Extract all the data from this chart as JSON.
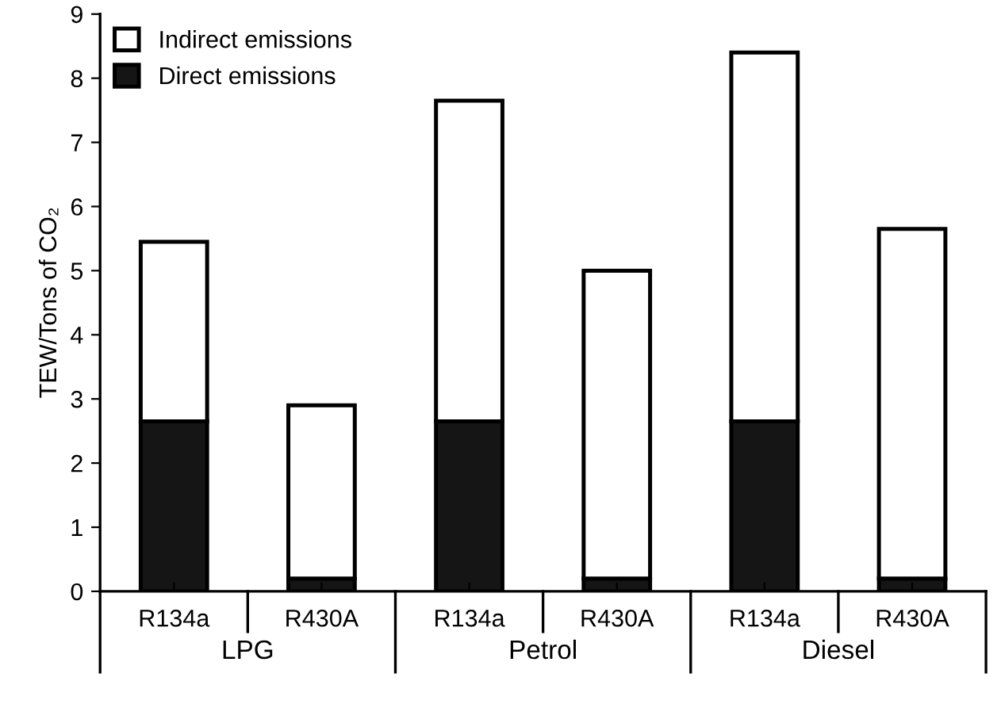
{
  "chart_data": {
    "type": "bar",
    "stacked": true,
    "ylabel": "TEW/Tons of CO₂",
    "categories": [
      "R134a",
      "R430A",
      "R134a",
      "R430A",
      "R134a",
      "R430A"
    ],
    "series": [
      {
        "name": "Direct emissions",
        "color": "#151515",
        "values": [
          2.65,
          0.2,
          2.65,
          0.2,
          2.65,
          0.2
        ]
      },
      {
        "name": "Indirect emissions",
        "color": "#ffffff",
        "values": [
          2.8,
          2.7,
          5.0,
          4.8,
          5.75,
          5.45
        ]
      }
    ],
    "annotations": [
      "LPG",
      "Petrol",
      "Diesel"
    ],
    "ylim": [
      0,
      9
    ],
    "yticks": [
      0,
      1,
      2,
      3,
      4,
      5,
      6,
      7,
      8,
      9
    ],
    "grid": false,
    "legend": "top left"
  }
}
